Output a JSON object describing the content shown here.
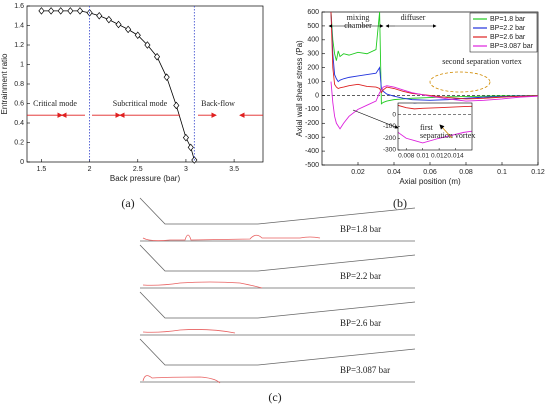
{
  "chart_data": [
    {
      "type": "line",
      "xlabel": "Back pressure (bar)",
      "ylabel": "Entrainment ratio",
      "x": [
        1.5,
        1.6,
        1.7,
        1.8,
        1.9,
        2.0,
        2.1,
        2.2,
        2.3,
        2.4,
        2.5,
        2.6,
        2.7,
        2.8,
        2.9,
        3.0,
        3.05,
        3.087
      ],
      "values": [
        1.55,
        1.55,
        1.55,
        1.55,
        1.55,
        1.53,
        1.5,
        1.46,
        1.41,
        1.36,
        1.3,
        1.2,
        1.08,
        0.87,
        0.58,
        0.25,
        0.15,
        0.02
      ],
      "color": "#000000",
      "marker": "diamond",
      "xlim": [
        1.35,
        3.8
      ],
      "ylim": [
        0,
        1.6
      ],
      "xticks": [
        1.5,
        2,
        2.5,
        3,
        3.5
      ],
      "yticks": [
        0,
        0.2,
        0.4,
        0.6,
        0.8,
        1,
        1.2,
        1.4,
        1.6
      ],
      "vlines": [
        2,
        3.087
      ],
      "vline_color": "#3344cc",
      "annotations": [
        "Critical mode",
        "Subcritical mode",
        "Back-flow"
      ]
    },
    {
      "type": "line",
      "xlabel": "Axial position (m)",
      "ylabel": "Axial wall shear stress (Pa)",
      "x": [
        0.005,
        0.006,
        0.007,
        0.008,
        0.009,
        0.01,
        0.012,
        0.015,
        0.02,
        0.025,
        0.03,
        0.032,
        0.033,
        0.034,
        0.036,
        0.04,
        0.045,
        0.05,
        0.06,
        0.07,
        0.08,
        0.09,
        0.1,
        0.11,
        0.12
      ],
      "series": [
        {
          "name": "BP=1.8 bar",
          "color": "#22cc22",
          "values": [
            600,
            400,
            300,
            250,
            320,
            280,
            300,
            290,
            310,
            300,
            330,
            600,
            -60,
            -50,
            -40,
            -30,
            -25,
            -20,
            -15,
            -10,
            -8,
            -5,
            -3,
            -2,
            0
          ]
        },
        {
          "name": "BP=2.2 bar",
          "color": "#2233dd",
          "values": [
            600,
            300,
            150,
            120,
            100,
            110,
            120,
            130,
            140,
            150,
            160,
            200,
            50,
            30,
            10,
            -5,
            -20,
            -30,
            -35,
            -30,
            -20,
            -12,
            -8,
            -4,
            -2
          ]
        },
        {
          "name": "BP=2.6 bar",
          "color": "#dd2222",
          "values": [
            600,
            200,
            80,
            60,
            50,
            55,
            60,
            70,
            80,
            65,
            60,
            50,
            20,
            40,
            60,
            50,
            30,
            15,
            0,
            -15,
            -25,
            -20,
            -12,
            -6,
            -2
          ]
        },
        {
          "name": "BP=3.087 bar",
          "color": "#dd22dd",
          "values": [
            100,
            -50,
            -150,
            -200,
            -220,
            -240,
            -200,
            -150,
            -100,
            -70,
            -40,
            20,
            40,
            60,
            70,
            60,
            40,
            20,
            -5,
            -25,
            -40,
            -35,
            -25,
            -12,
            -5
          ]
        }
      ],
      "xlim": [
        0,
        0.12
      ],
      "ylim": [
        -500,
        600
      ],
      "xticks": [
        0.02,
        0.04,
        0.06,
        0.08,
        0.1,
        0.12
      ],
      "yticks": [
        -500,
        -400,
        -300,
        -200,
        -100,
        0,
        100,
        200,
        300,
        400,
        500,
        600
      ],
      "legend": "upper right",
      "annotations": [
        "mixing chamber",
        "diffuser",
        "second separation vortex",
        "first separation vortex"
      ],
      "inset": {
        "xlim": [
          0.007,
          0.016
        ],
        "ylim": [
          -300,
          100
        ],
        "xticks": [
          0.008,
          0.01,
          0.012,
          0.014
        ],
        "yticks": [
          -300,
          -200,
          -100,
          0
        ]
      }
    }
  ],
  "figure": {
    "panels": [
      "(a)",
      "(b)",
      "(c)"
    ],
    "diagram": {
      "labels": [
        "BP=1.8 bar",
        "BP=2.2 bar",
        "BP=2.6 bar",
        "BP=3.087 bar"
      ]
    }
  }
}
